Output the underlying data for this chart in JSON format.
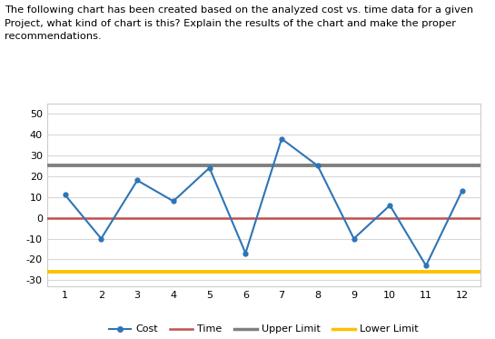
{
  "x": [
    1,
    2,
    3,
    4,
    5,
    6,
    7,
    8,
    9,
    10,
    11,
    12
  ],
  "cost": [
    11,
    -10,
    18,
    8,
    24,
    -17,
    38,
    25,
    -10,
    6,
    -23,
    13
  ],
  "time_val": 0,
  "upper_limit": 25,
  "lower_limit": -26,
  "ylim": [
    -33,
    55
  ],
  "yticks": [
    -30,
    -20,
    -10,
    0,
    10,
    20,
    30,
    40,
    50
  ],
  "cost_color": "#2E75B6",
  "time_color": "#C0504D",
  "upper_color": "#808080",
  "lower_color": "#FFC000",
  "title_line1": "The following chart has been created based on the analyzed cost vs. time data for a given",
  "title_line2": "Project, what kind of chart is this? Explain the results of the chart and make the proper",
  "title_line3": "recommendations.",
  "chart_bg": "#FFFFFF",
  "outer_bg": "#FFFFFF",
  "border_color": "#CCCCCC",
  "grid_color": "#D8D8D8"
}
